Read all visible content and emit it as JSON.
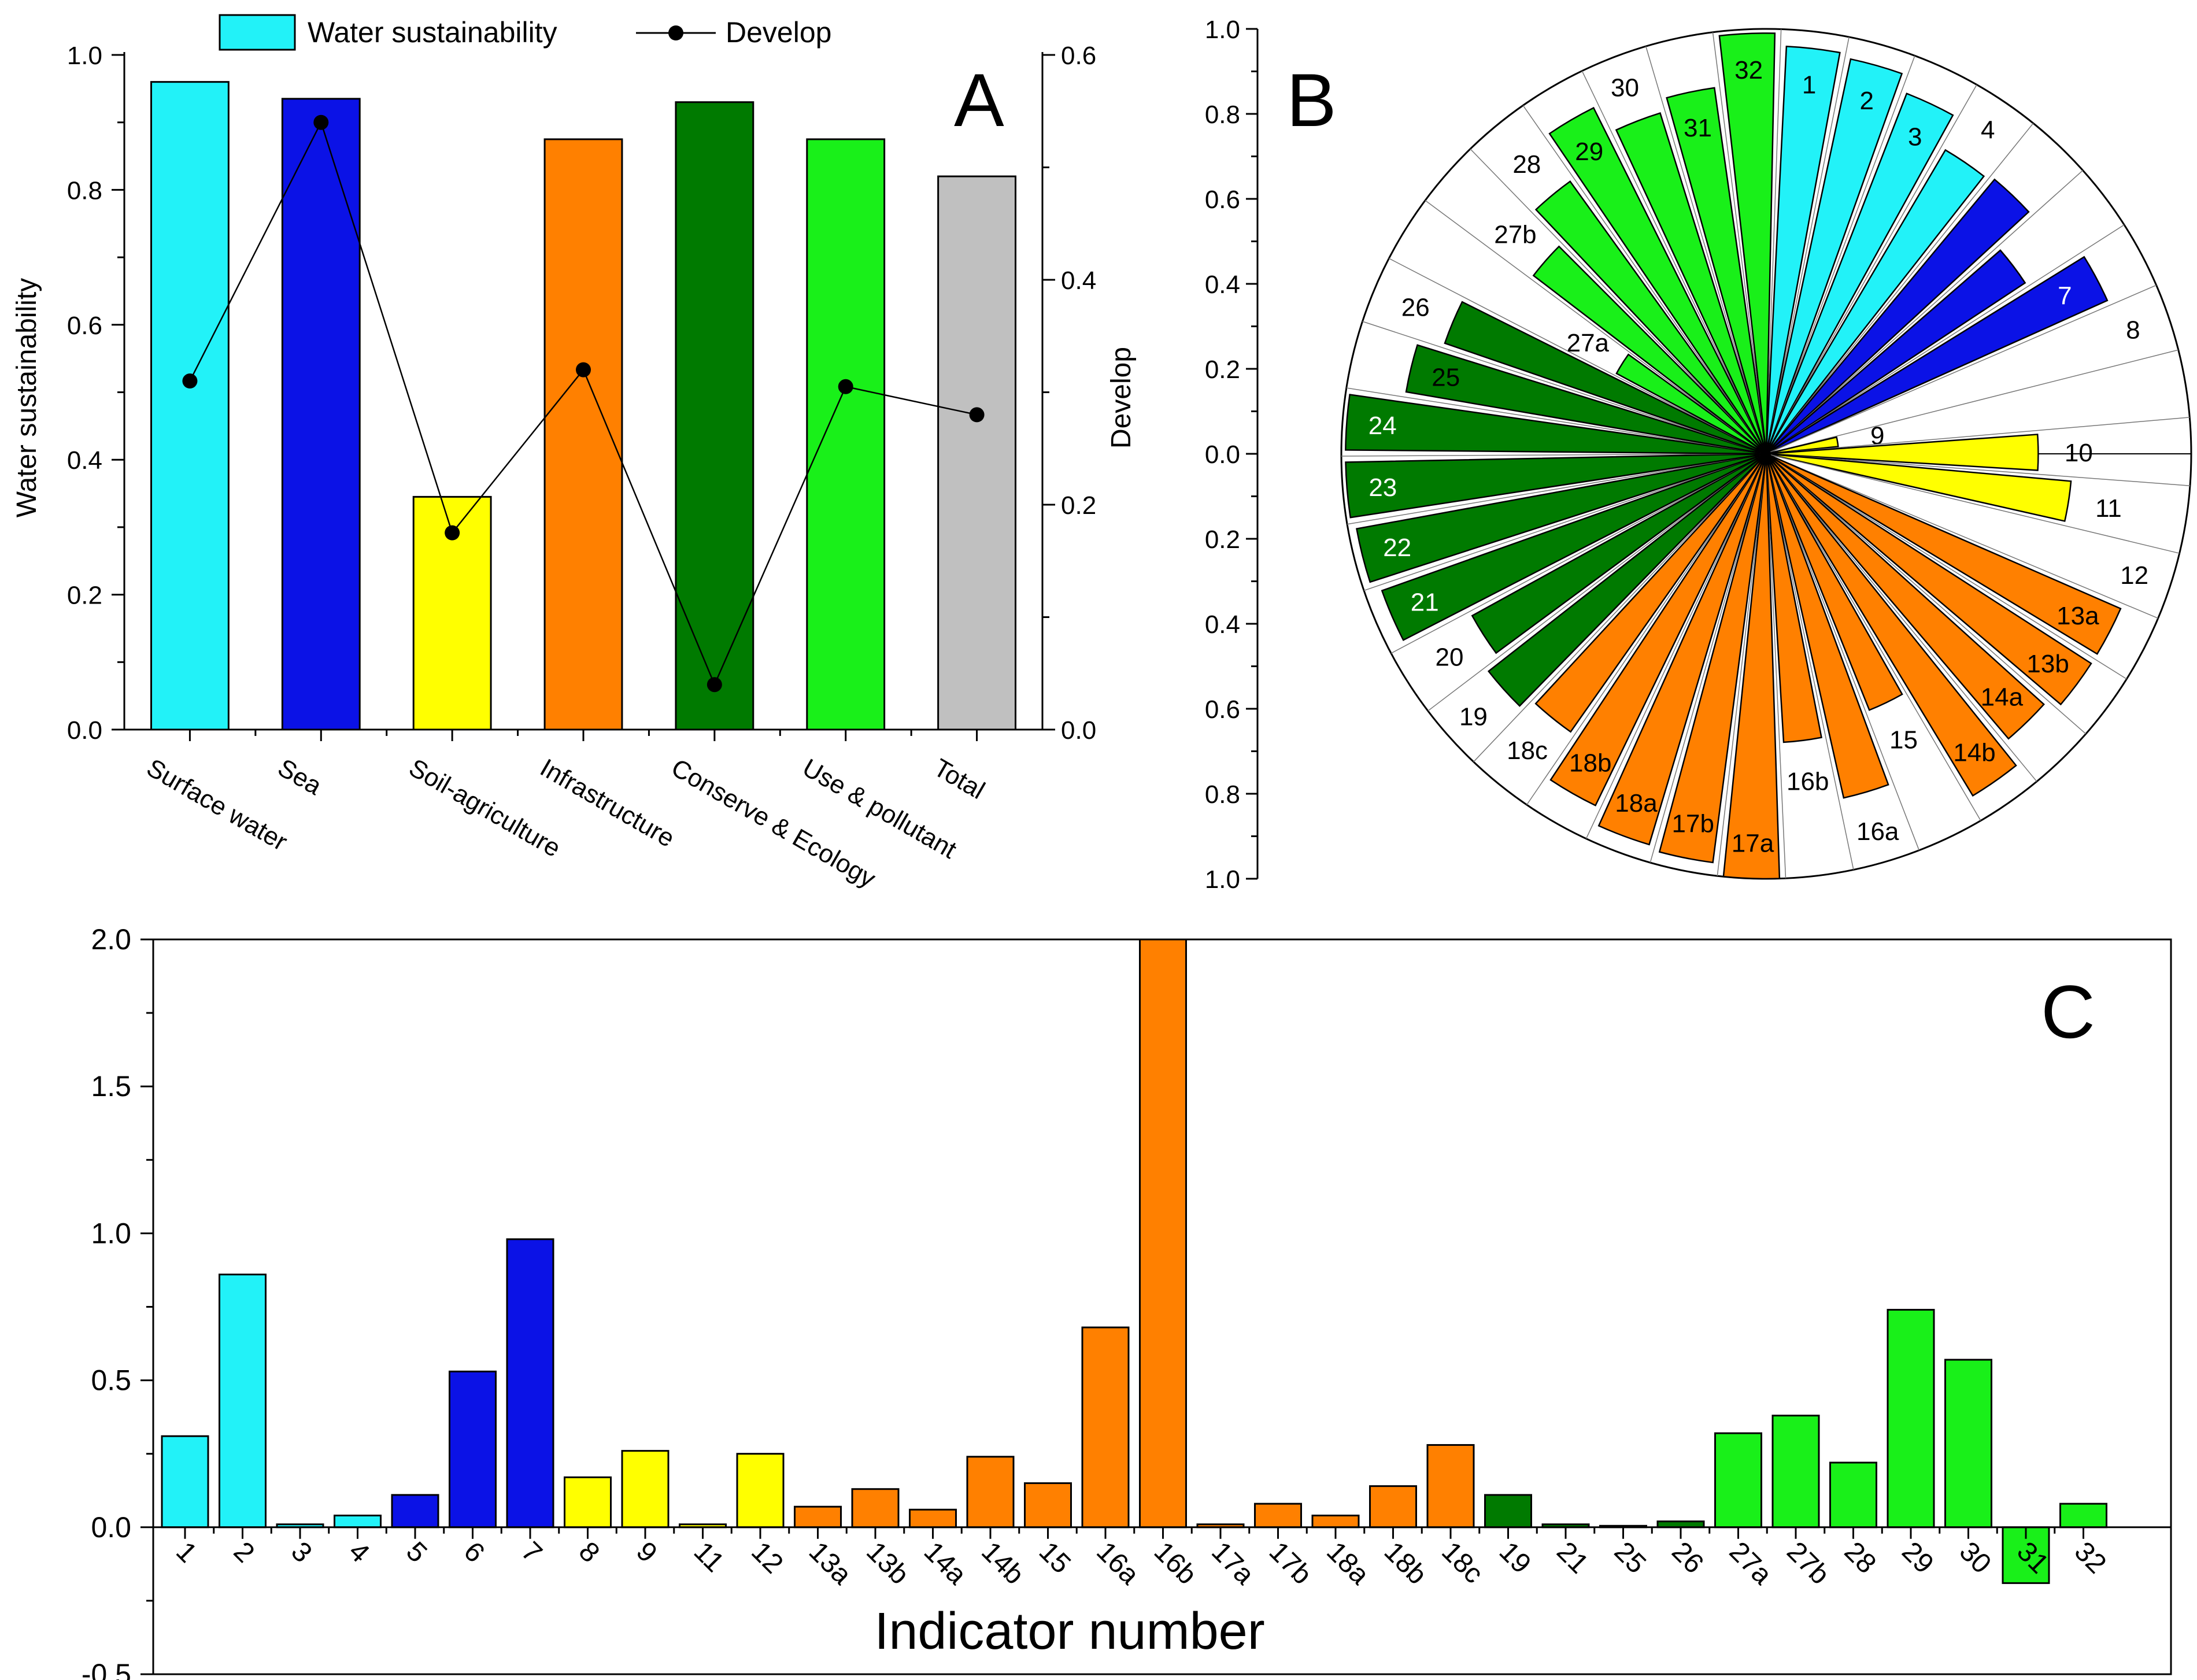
{
  "colors": {
    "cyan": "#22f2f8",
    "blue": "#0b12e6",
    "yellow": "#ffff00",
    "orange": "#ff8000",
    "dark_green": "#007a00",
    "light_green": "#19f019",
    "gray": "#c0c0c0",
    "stroke": "#000000"
  },
  "chart_data": [
    {
      "panel": "A",
      "type": "bar",
      "panel_label": "A",
      "legend": {
        "bar_label": "Water sustainability",
        "line_label": "Develop",
        "placement": "top-center"
      },
      "ylabel": "Water sustainability",
      "y2label": "Develop",
      "ylim": [
        0,
        1.0
      ],
      "y2lim": [
        0,
        0.6
      ],
      "yticks": [
        "0.0",
        "0.2",
        "0.4",
        "0.6",
        "0.8",
        "1.0"
      ],
      "y2ticks": [
        "0.0",
        "0.2",
        "0.4",
        "0.6"
      ],
      "categories": [
        "Surface water",
        "Sea",
        "Soil-agriculture",
        "Infrastructure",
        "Conserve & Ecology",
        "Use & pollutant",
        "Total"
      ],
      "bar_colors": [
        "cyan",
        "blue",
        "yellow",
        "orange",
        "dark_green",
        "light_green",
        "gray"
      ],
      "series": [
        {
          "name": "Water sustainability",
          "type": "bar",
          "values": [
            0.96,
            0.935,
            0.345,
            0.875,
            0.93,
            0.875,
            0.82
          ]
        },
        {
          "name": "Develop",
          "type": "line",
          "axis": "right",
          "values": [
            0.31,
            0.54,
            0.175,
            0.32,
            0.04,
            0.305,
            null
          ],
          "total_point": 0.28
        }
      ]
    },
    {
      "panel": "B",
      "type": "polar-bar",
      "panel_label": "B",
      "rlim": [
        0,
        1.0
      ],
      "rticks_top": [
        "1.0",
        "0.8",
        "0.6",
        "0.4",
        "0.2",
        "0.0"
      ],
      "rticks_bottom": [
        "0.2",
        "0.4",
        "0.6",
        "0.8",
        "1.0"
      ],
      "bars": [
        {
          "label": "1",
          "value": 0.96,
          "color": "cyan",
          "white_text": false
        },
        {
          "label": "2",
          "value": 0.95,
          "color": "cyan",
          "white_text": false
        },
        {
          "label": "3",
          "value": 0.91,
          "color": "cyan",
          "white_text": false
        },
        {
          "label": "4",
          "value": 0.83,
          "color": "cyan",
          "white_text": false
        },
        {
          "label": "5",
          "value": 0.84,
          "color": "blue",
          "white_text": true
        },
        {
          "label": "6",
          "value": 0.73,
          "color": "blue",
          "white_text": true
        },
        {
          "label": "7",
          "value": 0.88,
          "color": "blue",
          "white_text": true
        },
        {
          "label": "8",
          "value": 0.0,
          "color": "yellow",
          "white_text": false
        },
        {
          "label": "9",
          "value": 0.17,
          "color": "yellow",
          "white_text": false
        },
        {
          "label": "10",
          "value": 0.64,
          "color": "yellow",
          "white_text": false
        },
        {
          "label": "11",
          "value": 0.72,
          "color": "yellow",
          "white_text": false
        },
        {
          "label": "12",
          "value": 0.0,
          "color": "orange",
          "white_text": false
        },
        {
          "label": "13a",
          "value": 0.91,
          "color": "orange",
          "white_text": false
        },
        {
          "label": "13b",
          "value": 0.91,
          "color": "orange",
          "white_text": false
        },
        {
          "label": "14a",
          "value": 0.88,
          "color": "orange",
          "white_text": false
        },
        {
          "label": "14b",
          "value": 0.94,
          "color": "orange",
          "white_text": false
        },
        {
          "label": "15",
          "value": 0.65,
          "color": "orange",
          "white_text": false
        },
        {
          "label": "16a",
          "value": 0.83,
          "color": "orange",
          "white_text": false
        },
        {
          "label": "16b",
          "value": 0.68,
          "color": "orange",
          "white_text": false
        },
        {
          "label": "17a",
          "value": 1.0,
          "color": "orange",
          "white_text": false
        },
        {
          "label": "17b",
          "value": 0.97,
          "color": "orange",
          "white_text": false
        },
        {
          "label": "18a",
          "value": 0.96,
          "color": "orange",
          "white_text": false
        },
        {
          "label": "18b",
          "value": 0.92,
          "color": "orange",
          "white_text": false
        },
        {
          "label": "18c",
          "value": 0.8,
          "color": "orange",
          "white_text": false
        },
        {
          "label": "19",
          "value": 0.83,
          "color": "dark_green",
          "white_text": false
        },
        {
          "label": "20",
          "value": 0.79,
          "color": "dark_green",
          "white_text": false
        },
        {
          "label": "21",
          "value": 0.96,
          "color": "dark_green",
          "white_text": true
        },
        {
          "label": "22",
          "value": 0.98,
          "color": "dark_green",
          "white_text": true
        },
        {
          "label": "23",
          "value": 0.99,
          "color": "dark_green",
          "white_text": true
        },
        {
          "label": "24",
          "value": 0.99,
          "color": "dark_green",
          "white_text": true
        },
        {
          "label": "25",
          "value": 0.86,
          "color": "dark_green",
          "white_text": false
        },
        {
          "label": "26",
          "value": 0.8,
          "color": "dark_green",
          "white_text": false
        },
        {
          "label": "27a",
          "value": 0.4,
          "color": "light_green",
          "white_text": false
        },
        {
          "label": "27b",
          "value": 0.69,
          "color": "light_green",
          "white_text": false
        },
        {
          "label": "28",
          "value": 0.79,
          "color": "light_green",
          "white_text": false
        },
        {
          "label": "29",
          "value": 0.91,
          "color": "light_green",
          "white_text": false
        },
        {
          "label": "30",
          "value": 0.84,
          "color": "light_green",
          "white_text": false
        },
        {
          "label": "31",
          "value": 0.87,
          "color": "light_green",
          "white_text": false
        },
        {
          "label": "32",
          "value": 0.99,
          "color": "light_green",
          "white_text": false
        }
      ]
    },
    {
      "panel": "C",
      "type": "bar",
      "panel_label": "C",
      "xlabel": "Indicator number",
      "ylim": [
        -0.5,
        2.0
      ],
      "yticks": [
        "-0.5",
        "0.0",
        "0.5",
        "1.0",
        "1.5",
        "2.0"
      ],
      "categories": [
        "1",
        "2",
        "3",
        "4",
        "5",
        "6",
        "7",
        "8",
        "9",
        "11",
        "12",
        "13a",
        "13b",
        "14a",
        "14b",
        "15",
        "16a",
        "16b",
        "17a",
        "17b",
        "18a",
        "18b",
        "18c",
        "19",
        "21",
        "25",
        "26",
        "27a",
        "27b",
        "28",
        "29",
        "30",
        "31",
        "32"
      ],
      "bar_colors": [
        "cyan",
        "cyan",
        "cyan",
        "cyan",
        "blue",
        "blue",
        "blue",
        "yellow",
        "yellow",
        "yellow",
        "yellow",
        "orange",
        "orange",
        "orange",
        "orange",
        "orange",
        "orange",
        "orange",
        "orange",
        "orange",
        "orange",
        "orange",
        "orange",
        "dark_green",
        "dark_green",
        "dark_green",
        "dark_green",
        "light_green",
        "light_green",
        "light_green",
        "light_green",
        "light_green",
        "light_green",
        "light_green"
      ],
      "values": [
        0.31,
        0.86,
        0.01,
        0.04,
        0.11,
        0.53,
        0.98,
        0.17,
        0.26,
        0.01,
        0.25,
        0.07,
        0.13,
        0.06,
        0.24,
        0.15,
        0.68,
        2.0,
        0.01,
        0.08,
        0.04,
        0.14,
        0.28,
        0.11,
        0.01,
        0.005,
        0.02,
        0.32,
        0.38,
        0.22,
        0.74,
        0.57,
        -0.19,
        0.08
      ]
    }
  ]
}
